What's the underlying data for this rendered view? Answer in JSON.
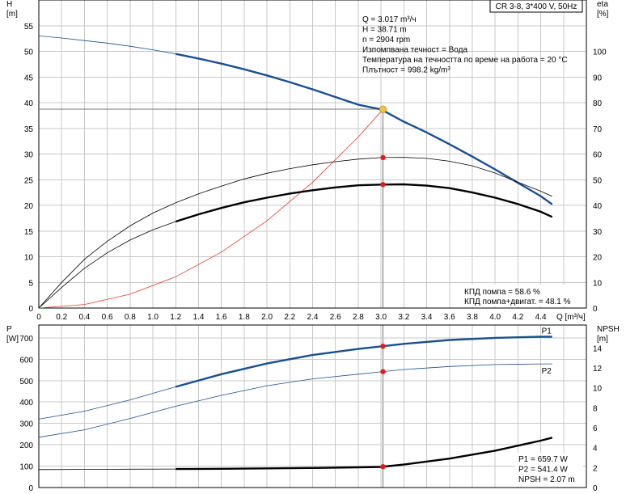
{
  "chart_data": [
    {
      "type": "line",
      "title_box": "CR 3-8, 3*400 V, 50Hz",
      "xlabel": "Q [m³/ч]",
      "xlim": [
        0,
        4.8
      ],
      "x_ticks": [
        "0",
        "0.2",
        "0.4",
        "0.6",
        "0.8",
        "1.0",
        "1.2",
        "1.4",
        "1.6",
        "1.8",
        "2.0",
        "2.2",
        "2.4",
        "2.6",
        "2.8",
        "3.0",
        "3.2",
        "3.4",
        "3.6",
        "3.8",
        "4.0",
        "4.2",
        "4.4"
      ],
      "ylabel_left": [
        "H",
        "[m]"
      ],
      "ylim_left": [
        0,
        60
      ],
      "y_ticks_left": [
        "0",
        "5",
        "10",
        "15",
        "20",
        "25",
        "30",
        "35",
        "40",
        "45",
        "50",
        "55"
      ],
      "ylabel_right": [
        "eta",
        "[%]"
      ],
      "ylim_right": [
        0,
        120
      ],
      "y_ticks_right": [
        "0",
        "10",
        "20",
        "30",
        "40",
        "50",
        "60",
        "70",
        "80",
        "90",
        "100"
      ],
      "grid": true,
      "info_lines": [
        "Q = 3.017 m³/ч",
        "H = 38.71 m",
        "n = 2904 rpm",
        "Изпомпвана течност = Вода",
        "Температура на течността по време на работа = 20 °C",
        "Плътност = 998.2 kg/m³"
      ],
      "efficiency_notes": [
        "КПД помпа = 58.6 %",
        "КПД помпа+двигат. = 48.1 %"
      ],
      "operating_point": {
        "x": 3.017,
        "y": 38.71
      },
      "colors": {
        "head": "#1a4f91",
        "system": "#e8392c",
        "efficiency": "#000000",
        "marker": "#e41b1b",
        "duty": "#f5c242"
      },
      "series": [
        {
          "axis": "left",
          "color": "#1a4f91",
          "x": [
            0,
            0.2,
            0.4,
            0.6,
            0.8,
            1.0,
            1.2,
            1.4,
            1.6,
            1.8,
            2.0,
            2.2,
            2.4,
            2.6,
            2.8,
            3.0,
            3.2,
            3.4,
            3.6,
            3.8,
            4.0,
            4.2,
            4.4,
            4.5
          ],
          "y": [
            53.0,
            52.6,
            52.1,
            51.6,
            51.0,
            50.3,
            49.5,
            48.6,
            47.6,
            46.5,
            45.3,
            44.0,
            42.6,
            41.1,
            39.6,
            38.7,
            36.3,
            34.2,
            31.9,
            29.5,
            27.0,
            24.4,
            21.8,
            20.2
          ],
          "thick_from": 1.2
        },
        {
          "axis": "left",
          "color": "#e8392c",
          "x": [
            0,
            0.4,
            0.8,
            1.2,
            1.6,
            2.0,
            2.4,
            2.8,
            3.017
          ],
          "y": [
            0,
            0.7,
            2.7,
            6.1,
            10.9,
            17.0,
            24.5,
            33.3,
            38.71
          ]
        },
        {
          "axis": "right",
          "x": [
            0,
            0.2,
            0.4,
            0.6,
            0.8,
            1.0,
            1.2,
            1.4,
            1.6,
            1.8,
            2.0,
            2.2,
            2.4,
            2.6,
            2.8,
            3.0,
            3.2,
            3.4,
            3.6,
            3.8,
            4.0,
            4.2,
            4.4,
            4.5
          ],
          "y": [
            0,
            10,
            19,
            26,
            32,
            37,
            41,
            44.5,
            47.5,
            50.3,
            52.5,
            54.3,
            55.8,
            57.0,
            58.0,
            58.6,
            58.7,
            58.3,
            57.2,
            55.4,
            52.6,
            49.0,
            45.5,
            43.5
          ],
          "marker_x": 3.017
        },
        {
          "axis": "right",
          "x": [
            0,
            0.2,
            0.4,
            0.6,
            0.8,
            1.0,
            1.2,
            1.4,
            1.6,
            1.8,
            2.0,
            2.2,
            2.4,
            2.6,
            2.8,
            3.0,
            3.2,
            3.4,
            3.6,
            3.8,
            4.0,
            4.2,
            4.4,
            4.5
          ],
          "y": [
            0,
            8,
            15.5,
            21.5,
            26.5,
            30.5,
            33.7,
            36.5,
            39.0,
            41.2,
            43.0,
            44.6,
            45.9,
            47.0,
            47.8,
            48.1,
            48.2,
            47.7,
            46.7,
            45.0,
            43.0,
            40.5,
            37.5,
            35.5
          ],
          "thick_from": 1.2,
          "marker_x": 3.017
        }
      ]
    },
    {
      "type": "line",
      "xlim": [
        0,
        4.8
      ],
      "ylabel_left": [
        "P",
        "[W]"
      ],
      "ylim_left": [
        0,
        760
      ],
      "y_ticks_left": [
        "0",
        "100",
        "200",
        "300",
        "400",
        "500",
        "600",
        "700"
      ],
      "ylabel_right": [
        "NPSH",
        "[m]"
      ],
      "ylim_right": [
        0,
        16.3
      ],
      "y_ticks_right": [
        "0",
        "2",
        "4",
        "6",
        "8",
        "10",
        "12",
        "14"
      ],
      "grid": true,
      "values_box": [
        "P1 = 659.7 W",
        "P2 = 541.4 W",
        "NPSH = 2.07 m"
      ],
      "colors": {
        "power": "#1a4f91",
        "npsh": "#000000",
        "marker": "#e41b1b"
      },
      "series": [
        {
          "name": "P1",
          "axis": "left",
          "color": "#1a4f91",
          "x": [
            0,
            0.4,
            0.8,
            1.2,
            1.6,
            2.0,
            2.4,
            2.8,
            3.0,
            3.2,
            3.6,
            4.0,
            4.4,
            4.5
          ],
          "y": [
            320,
            357,
            410,
            471,
            530,
            580,
            620,
            648,
            660,
            672,
            690,
            700,
            705,
            705
          ],
          "thick_from": 1.2,
          "marker_x": 3.017,
          "label_x": 4.4
        },
        {
          "name": "P2",
          "axis": "left",
          "color": "#1a4f91",
          "x": [
            0,
            0.4,
            0.8,
            1.2,
            1.6,
            2.0,
            2.4,
            2.8,
            3.0,
            3.2,
            3.6,
            4.0,
            4.4,
            4.5
          ],
          "y": [
            235,
            270,
            323,
            380,
            431,
            476,
            508,
            530,
            541,
            552,
            566,
            575,
            578,
            578
          ],
          "marker_x": 3.017,
          "label_x": 4.4
        },
        {
          "axis": "right",
          "color": "#000000",
          "x": [
            0,
            0.4,
            0.8,
            1.2,
            1.6,
            2.0,
            2.4,
            2.8,
            3.0,
            3.2,
            3.6,
            4.0,
            4.4,
            4.5
          ],
          "y": [
            1.8,
            1.82,
            1.84,
            1.86,
            1.88,
            1.92,
            1.96,
            2.03,
            2.07,
            2.3,
            2.9,
            3.7,
            4.7,
            5.0
          ],
          "thick_from": 1.2,
          "marker_x": 3.017
        }
      ]
    }
  ]
}
